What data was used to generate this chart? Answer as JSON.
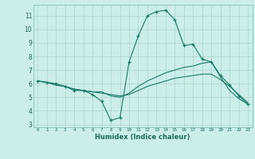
{
  "xlabel": "Humidex (Indice chaleur)",
  "bg_color": "#cceee8",
  "grid_color": "#aad4cc",
  "line_color": "#1a7a6a",
  "xlim": [
    -0.5,
    23.5
  ],
  "ylim": [
    2.8,
    11.8
  ],
  "yticks": [
    3,
    4,
    5,
    6,
    7,
    8,
    9,
    10,
    11
  ],
  "xticks": [
    0,
    1,
    2,
    3,
    4,
    5,
    6,
    7,
    8,
    9,
    10,
    11,
    12,
    13,
    14,
    15,
    16,
    17,
    18,
    19,
    20,
    21,
    22,
    23
  ],
  "series": [
    {
      "x": [
        0,
        1,
        2,
        3,
        4,
        5,
        6,
        7,
        8,
        9,
        10,
        11,
        12,
        13,
        14,
        15,
        16,
        17,
        18,
        19,
        20,
        21,
        22,
        23
      ],
      "y": [
        6.2,
        6.1,
        6.0,
        5.8,
        5.5,
        5.5,
        5.2,
        4.7,
        3.3,
        3.5,
        7.6,
        9.5,
        11.0,
        11.3,
        11.4,
        10.7,
        8.8,
        8.9,
        7.8,
        7.6,
        6.6,
        5.9,
        5.1,
        4.5
      ],
      "marker": "+"
    },
    {
      "x": [
        0,
        1,
        2,
        3,
        4,
        5,
        6,
        7,
        8,
        9,
        10,
        11,
        12,
        13,
        14,
        15,
        16,
        17,
        18,
        19,
        20,
        21,
        22,
        23
      ],
      "y": [
        6.2,
        6.1,
        5.9,
        5.8,
        5.6,
        5.5,
        5.4,
        5.4,
        5.1,
        5.0,
        5.3,
        5.8,
        6.2,
        6.5,
        6.8,
        7.0,
        7.2,
        7.3,
        7.5,
        7.6,
        6.5,
        5.5,
        4.9,
        4.5
      ],
      "marker": null
    },
    {
      "x": [
        0,
        1,
        2,
        3,
        4,
        5,
        6,
        7,
        8,
        9,
        10,
        11,
        12,
        13,
        14,
        15,
        16,
        17,
        18,
        19,
        20,
        21,
        22,
        23
      ],
      "y": [
        6.2,
        6.1,
        5.9,
        5.8,
        5.6,
        5.5,
        5.4,
        5.3,
        5.2,
        5.1,
        5.2,
        5.5,
        5.8,
        6.0,
        6.2,
        6.4,
        6.5,
        6.6,
        6.7,
        6.7,
        6.3,
        5.8,
        5.2,
        4.6
      ],
      "marker": null
    }
  ]
}
